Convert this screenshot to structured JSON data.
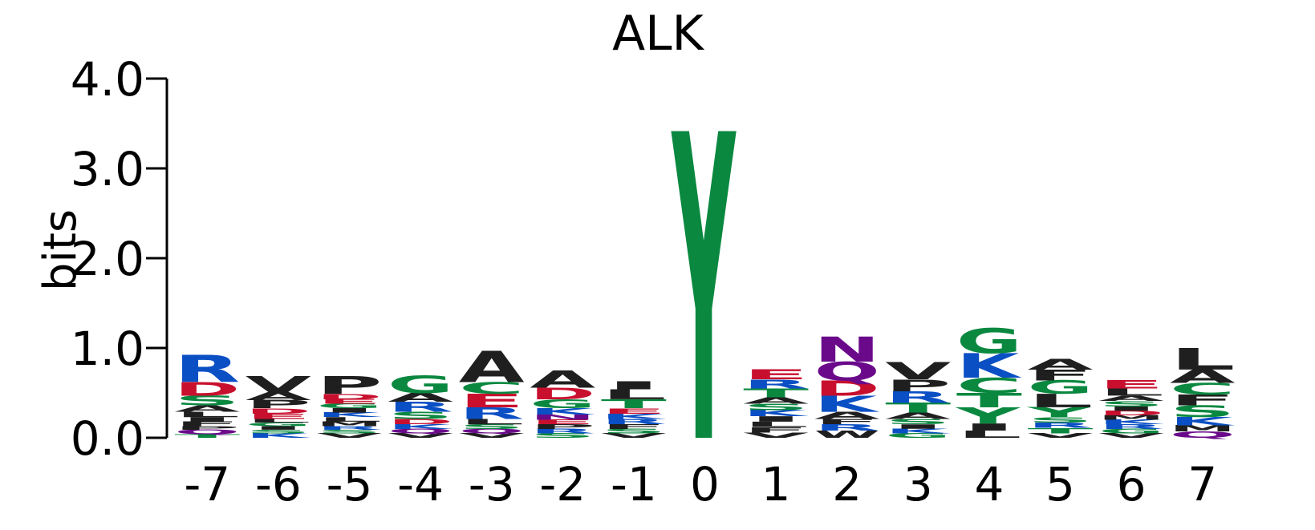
{
  "chart_data": {
    "type": "sequence-logo",
    "title": "ALK",
    "ylabel": "bits",
    "ylim": [
      0,
      4
    ],
    "yticks": [
      "0.0",
      "1.0",
      "2.0",
      "3.0",
      "4.0"
    ],
    "positions": [
      "-7",
      "-6",
      "-5",
      "-4",
      "-3",
      "-2",
      "-1",
      "0",
      "1",
      "2",
      "3",
      "4",
      "5",
      "6",
      "7"
    ],
    "colors": {
      "acidic": "#c8102e",
      "basic": "#0a4fc4",
      "polar": "#0a8840",
      "hydrophobic": "#1f1f1f",
      "amide": "#6a0a8a"
    },
    "stacks": [
      {
        "position": "-7",
        "letters": [
          {
            "aa": "R",
            "bits": 0.3
          },
          {
            "aa": "D",
            "bits": 0.15
          },
          {
            "aa": "S",
            "bits": 0.11
          },
          {
            "aa": "A",
            "bits": 0.07
          },
          {
            "aa": "L",
            "bits": 0.06
          },
          {
            "aa": "I",
            "bits": 0.05
          },
          {
            "aa": "F",
            "bits": 0.05
          },
          {
            "aa": "P",
            "bits": 0.04
          },
          {
            "aa": "Q",
            "bits": 0.05
          },
          {
            "aa": "T",
            "bits": 0.04
          }
        ]
      },
      {
        "position": "-6",
        "letters": [
          {
            "aa": "V",
            "bits": 0.18
          },
          {
            "aa": "A",
            "bits": 0.09
          },
          {
            "aa": "P",
            "bits": 0.09
          },
          {
            "aa": "D",
            "bits": 0.06
          },
          {
            "aa": "E",
            "bits": 0.06
          },
          {
            "aa": "L",
            "bits": 0.04
          },
          {
            "aa": "G",
            "bits": 0.04
          },
          {
            "aa": "I",
            "bits": 0.04
          },
          {
            "aa": "S",
            "bits": 0.04
          },
          {
            "aa": "K",
            "bits": 0.05
          }
        ]
      },
      {
        "position": "-5",
        "letters": [
          {
            "aa": "P",
            "bits": 0.2
          },
          {
            "aa": "D",
            "bits": 0.06
          },
          {
            "aa": "E",
            "bits": 0.05
          },
          {
            "aa": "G",
            "bits": 0.05
          },
          {
            "aa": "I",
            "bits": 0.05
          },
          {
            "aa": "K",
            "bits": 0.05
          },
          {
            "aa": "L",
            "bits": 0.05
          },
          {
            "aa": "M",
            "bits": 0.05
          },
          {
            "aa": "R",
            "bits": 0.04
          },
          {
            "aa": "S",
            "bits": 0.04
          },
          {
            "aa": "V",
            "bits": 0.05
          }
        ]
      },
      {
        "position": "-4",
        "letters": [
          {
            "aa": "G",
            "bits": 0.19
          },
          {
            "aa": "A",
            "bits": 0.1
          },
          {
            "aa": "R",
            "bits": 0.11
          },
          {
            "aa": "S",
            "bits": 0.08
          },
          {
            "aa": "D",
            "bits": 0.06
          },
          {
            "aa": "K",
            "bits": 0.05
          },
          {
            "aa": "Q",
            "bits": 0.05
          },
          {
            "aa": "V",
            "bits": 0.05
          }
        ]
      },
      {
        "position": "-3",
        "letters": [
          {
            "aa": "A",
            "bits": 0.35
          },
          {
            "aa": "C",
            "bits": 0.13
          },
          {
            "aa": "E",
            "bits": 0.15
          },
          {
            "aa": "R",
            "bits": 0.13
          },
          {
            "aa": "L",
            "bits": 0.06
          },
          {
            "aa": "S",
            "bits": 0.05
          },
          {
            "aa": "Q",
            "bits": 0.05
          },
          {
            "aa": "V",
            "bits": 0.05
          }
        ]
      },
      {
        "position": "-2",
        "letters": [
          {
            "aa": "A",
            "bits": 0.19
          },
          {
            "aa": "D",
            "bits": 0.13
          },
          {
            "aa": "G",
            "bits": 0.1
          },
          {
            "aa": "K",
            "bits": 0.07
          },
          {
            "aa": "N",
            "bits": 0.06
          },
          {
            "aa": "E",
            "bits": 0.05
          },
          {
            "aa": "P",
            "bits": 0.05
          },
          {
            "aa": "R",
            "bits": 0.05
          },
          {
            "aa": "S",
            "bits": 0.05
          }
        ]
      },
      {
        "position": "-1",
        "letters": [
          {
            "aa": "I",
            "bits": 0.09
          },
          {
            "aa": "L",
            "bits": 0.11
          },
          {
            "aa": "T",
            "bits": 0.1
          },
          {
            "aa": "E",
            "bits": 0.06
          },
          {
            "aa": "K",
            "bits": 0.06
          },
          {
            "aa": "R",
            "bits": 0.06
          },
          {
            "aa": "F",
            "bits": 0.05
          },
          {
            "aa": "S",
            "bits": 0.05
          },
          {
            "aa": "V",
            "bits": 0.05
          }
        ]
      },
      {
        "position": "0",
        "letters": [
          {
            "aa": "Y",
            "bits": 3.42
          }
        ]
      },
      {
        "position": "1",
        "letters": [
          {
            "aa": "E",
            "bits": 0.11
          },
          {
            "aa": "R",
            "bits": 0.1
          },
          {
            "aa": "T",
            "bits": 0.1
          },
          {
            "aa": "A",
            "bits": 0.07
          },
          {
            "aa": "S",
            "bits": 0.07
          },
          {
            "aa": "K",
            "bits": 0.07
          },
          {
            "aa": "I",
            "bits": 0.06
          },
          {
            "aa": "L",
            "bits": 0.06
          },
          {
            "aa": "F",
            "bits": 0.06
          },
          {
            "aa": "V",
            "bits": 0.06
          }
        ]
      },
      {
        "position": "2",
        "letters": [
          {
            "aa": "N",
            "bits": 0.28
          },
          {
            "aa": "Q",
            "bits": 0.21
          },
          {
            "aa": "D",
            "bits": 0.17
          },
          {
            "aa": "K",
            "bits": 0.18
          },
          {
            "aa": "A",
            "bits": 0.08
          },
          {
            "aa": "F",
            "bits": 0.06
          },
          {
            "aa": "R",
            "bits": 0.07
          },
          {
            "aa": "W",
            "bits": 0.08
          }
        ]
      },
      {
        "position": "3",
        "letters": [
          {
            "aa": "V",
            "bits": 0.19
          },
          {
            "aa": "P",
            "bits": 0.13
          },
          {
            "aa": "R",
            "bits": 0.13
          },
          {
            "aa": "T",
            "bits": 0.11
          },
          {
            "aa": "A",
            "bits": 0.07
          },
          {
            "aa": "S",
            "bits": 0.06
          },
          {
            "aa": "I",
            "bits": 0.05
          },
          {
            "aa": "K",
            "bits": 0.05
          },
          {
            "aa": "G",
            "bits": 0.05
          }
        ]
      },
      {
        "position": "4",
        "letters": [
          {
            "aa": "G",
            "bits": 0.28
          },
          {
            "aa": "K",
            "bits": 0.27
          },
          {
            "aa": "C",
            "bits": 0.17
          },
          {
            "aa": "T",
            "bits": 0.16
          },
          {
            "aa": "Y",
            "bits": 0.18
          },
          {
            "aa": "I",
            "bits": 0.08
          },
          {
            "aa": "L",
            "bits": 0.08
          }
        ]
      },
      {
        "position": "5",
        "letters": [
          {
            "aa": "A",
            "bits": 0.12
          },
          {
            "aa": "F",
            "bits": 0.12
          },
          {
            "aa": "G",
            "bits": 0.15
          },
          {
            "aa": "L",
            "bits": 0.15
          },
          {
            "aa": "Y",
            "bits": 0.11
          },
          {
            "aa": "S",
            "bits": 0.06
          },
          {
            "aa": "R",
            "bits": 0.06
          },
          {
            "aa": "T",
            "bits": 0.06
          },
          {
            "aa": "V",
            "bits": 0.05
          }
        ]
      },
      {
        "position": "6",
        "letters": [
          {
            "aa": "E",
            "bits": 0.09
          },
          {
            "aa": "L",
            "bits": 0.08
          },
          {
            "aa": "A",
            "bits": 0.06
          },
          {
            "aa": "S",
            "bits": 0.06
          },
          {
            "aa": "I",
            "bits": 0.05
          },
          {
            "aa": "D",
            "bits": 0.05
          },
          {
            "aa": "M",
            "bits": 0.05
          },
          {
            "aa": "K",
            "bits": 0.05
          },
          {
            "aa": "R",
            "bits": 0.05
          },
          {
            "aa": "G",
            "bits": 0.05
          },
          {
            "aa": "V",
            "bits": 0.05
          }
        ]
      },
      {
        "position": "7",
        "letters": [
          {
            "aa": "L",
            "bits": 0.24
          },
          {
            "aa": "A",
            "bits": 0.15
          },
          {
            "aa": "C",
            "bits": 0.13
          },
          {
            "aa": "F",
            "bits": 0.12
          },
          {
            "aa": "S",
            "bits": 0.13
          },
          {
            "aa": "K",
            "bits": 0.09
          },
          {
            "aa": "M",
            "bits": 0.07
          },
          {
            "aa": "Q",
            "bits": 0.07
          }
        ]
      }
    ]
  }
}
